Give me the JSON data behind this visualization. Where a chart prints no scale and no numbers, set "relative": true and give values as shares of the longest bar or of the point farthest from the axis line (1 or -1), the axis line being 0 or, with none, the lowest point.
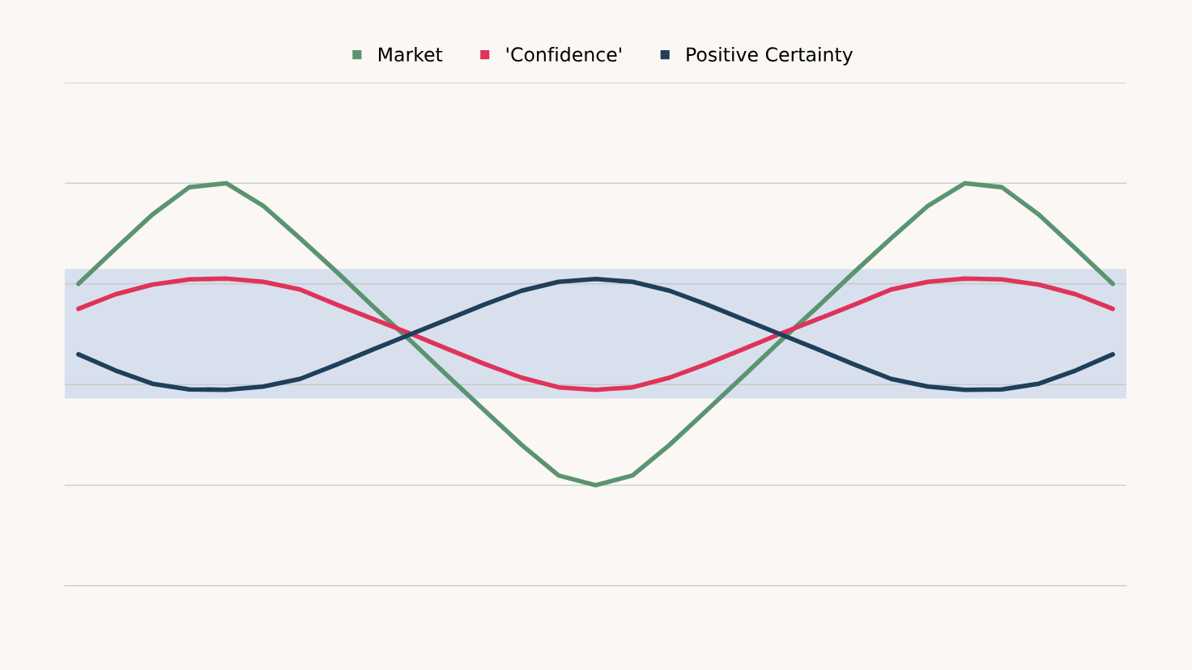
{
  "chart_data": {
    "type": "line",
    "relative": true,
    "grid": "y",
    "legend": "top",
    "marker": "none",
    "line_style": "solid",
    "categories": [
      null,
      null,
      null,
      null,
      null,
      null,
      null,
      null,
      null,
      null,
      null,
      null,
      null,
      null,
      null,
      null,
      null,
      null,
      null,
      null,
      null,
      null,
      null,
      null,
      null,
      null,
      null,
      null,
      null
    ],
    "series": [
      {
        "name": "Market",
        "color": "#5a9470",
        "values": [
          0.75,
          0.837,
          0.922,
          0.99,
          1.0,
          0.944,
          0.863,
          0.779,
          0.692,
          0.608,
          0.521,
          0.435,
          0.35,
          0.274,
          0.25,
          0.274,
          0.35,
          0.435,
          0.521,
          0.608,
          0.692,
          0.779,
          0.863,
          0.944,
          1.0,
          0.99,
          0.922,
          0.837,
          0.75
        ]
      },
      {
        "name": "'Confidence'",
        "color": "#e0335a",
        "values": [
          0.688,
          0.724,
          0.748,
          0.761,
          0.763,
          0.755,
          0.736,
          0.698,
          0.662,
          0.626,
          0.588,
          0.551,
          0.517,
          0.493,
          0.487,
          0.493,
          0.517,
          0.551,
          0.588,
          0.626,
          0.662,
          0.698,
          0.736,
          0.755,
          0.763,
          0.761,
          0.748,
          0.724,
          0.688
        ]
      },
      {
        "name": "Positive Certainty",
        "color": "#1f3f5a",
        "values": [
          0.575,
          0.535,
          0.502,
          0.488,
          0.487,
          0.495,
          0.514,
          0.55,
          0.588,
          0.625,
          0.662,
          0.699,
          0.733,
          0.755,
          0.762,
          0.755,
          0.733,
          0.699,
          0.662,
          0.625,
          0.588,
          0.55,
          0.514,
          0.495,
          0.487,
          0.488,
          0.502,
          0.535,
          0.575
        ]
      }
    ],
    "bands": [
      {
        "axis": "y",
        "from": 0.465,
        "to": 0.787,
        "color": "#d8e0ee"
      }
    ]
  }
}
